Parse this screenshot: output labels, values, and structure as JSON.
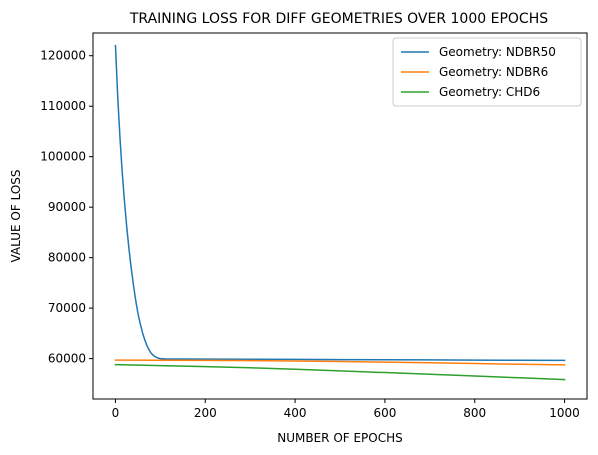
{
  "chart_data": {
    "type": "line",
    "title": "TRAINING LOSS FOR DIFF GEOMETRIES OVER 1000 EPOCHS",
    "xlabel": "NUMBER OF EPOCHS",
    "ylabel": "VALUE OF LOSS",
    "xlim": [
      -50,
      1050
    ],
    "ylim": [
      52000,
      124500
    ],
    "xticks": [
      0,
      200,
      400,
      600,
      800,
      1000
    ],
    "yticks": [
      60000,
      70000,
      80000,
      90000,
      100000,
      110000,
      120000
    ],
    "grid": false,
    "legend_position": "top-right",
    "series": [
      {
        "name": "Geometry: NDBR50",
        "color": "#1f77b4",
        "x": [
          0,
          5,
          10,
          15,
          20,
          25,
          30,
          35,
          40,
          45,
          50,
          55,
          60,
          65,
          70,
          75,
          80,
          85,
          90,
          95,
          100,
          110,
          120,
          150,
          200,
          300,
          400,
          500,
          600,
          700,
          800,
          900,
          1000
        ],
        "y": [
          122000,
          112000,
          103800,
          97000,
          91200,
          86200,
          81800,
          78000,
          74600,
          71600,
          69000,
          67000,
          65200,
          63800,
          62600,
          61700,
          61000,
          60600,
          60300,
          60100,
          60000,
          59950,
          59930,
          59920,
          59900,
          59870,
          59840,
          59800,
          59770,
          59740,
          59700,
          59680,
          59650
        ]
      },
      {
        "name": "Geometry: NDBR6",
        "color": "#ff7f0e",
        "x": [
          0,
          100,
          200,
          300,
          400,
          500,
          600,
          700,
          800,
          900,
          1000
        ],
        "y": [
          59700,
          59680,
          59650,
          59600,
          59520,
          59420,
          59300,
          59170,
          59030,
          58880,
          58750
        ]
      },
      {
        "name": "Geometry: CHD6",
        "color": "#2ca02c",
        "x": [
          0,
          100,
          200,
          300,
          400,
          500,
          600,
          700,
          800,
          900,
          1000
        ],
        "y": [
          58800,
          58620,
          58420,
          58180,
          57900,
          57580,
          57240,
          56900,
          56550,
          56200,
          55850
        ]
      }
    ]
  }
}
